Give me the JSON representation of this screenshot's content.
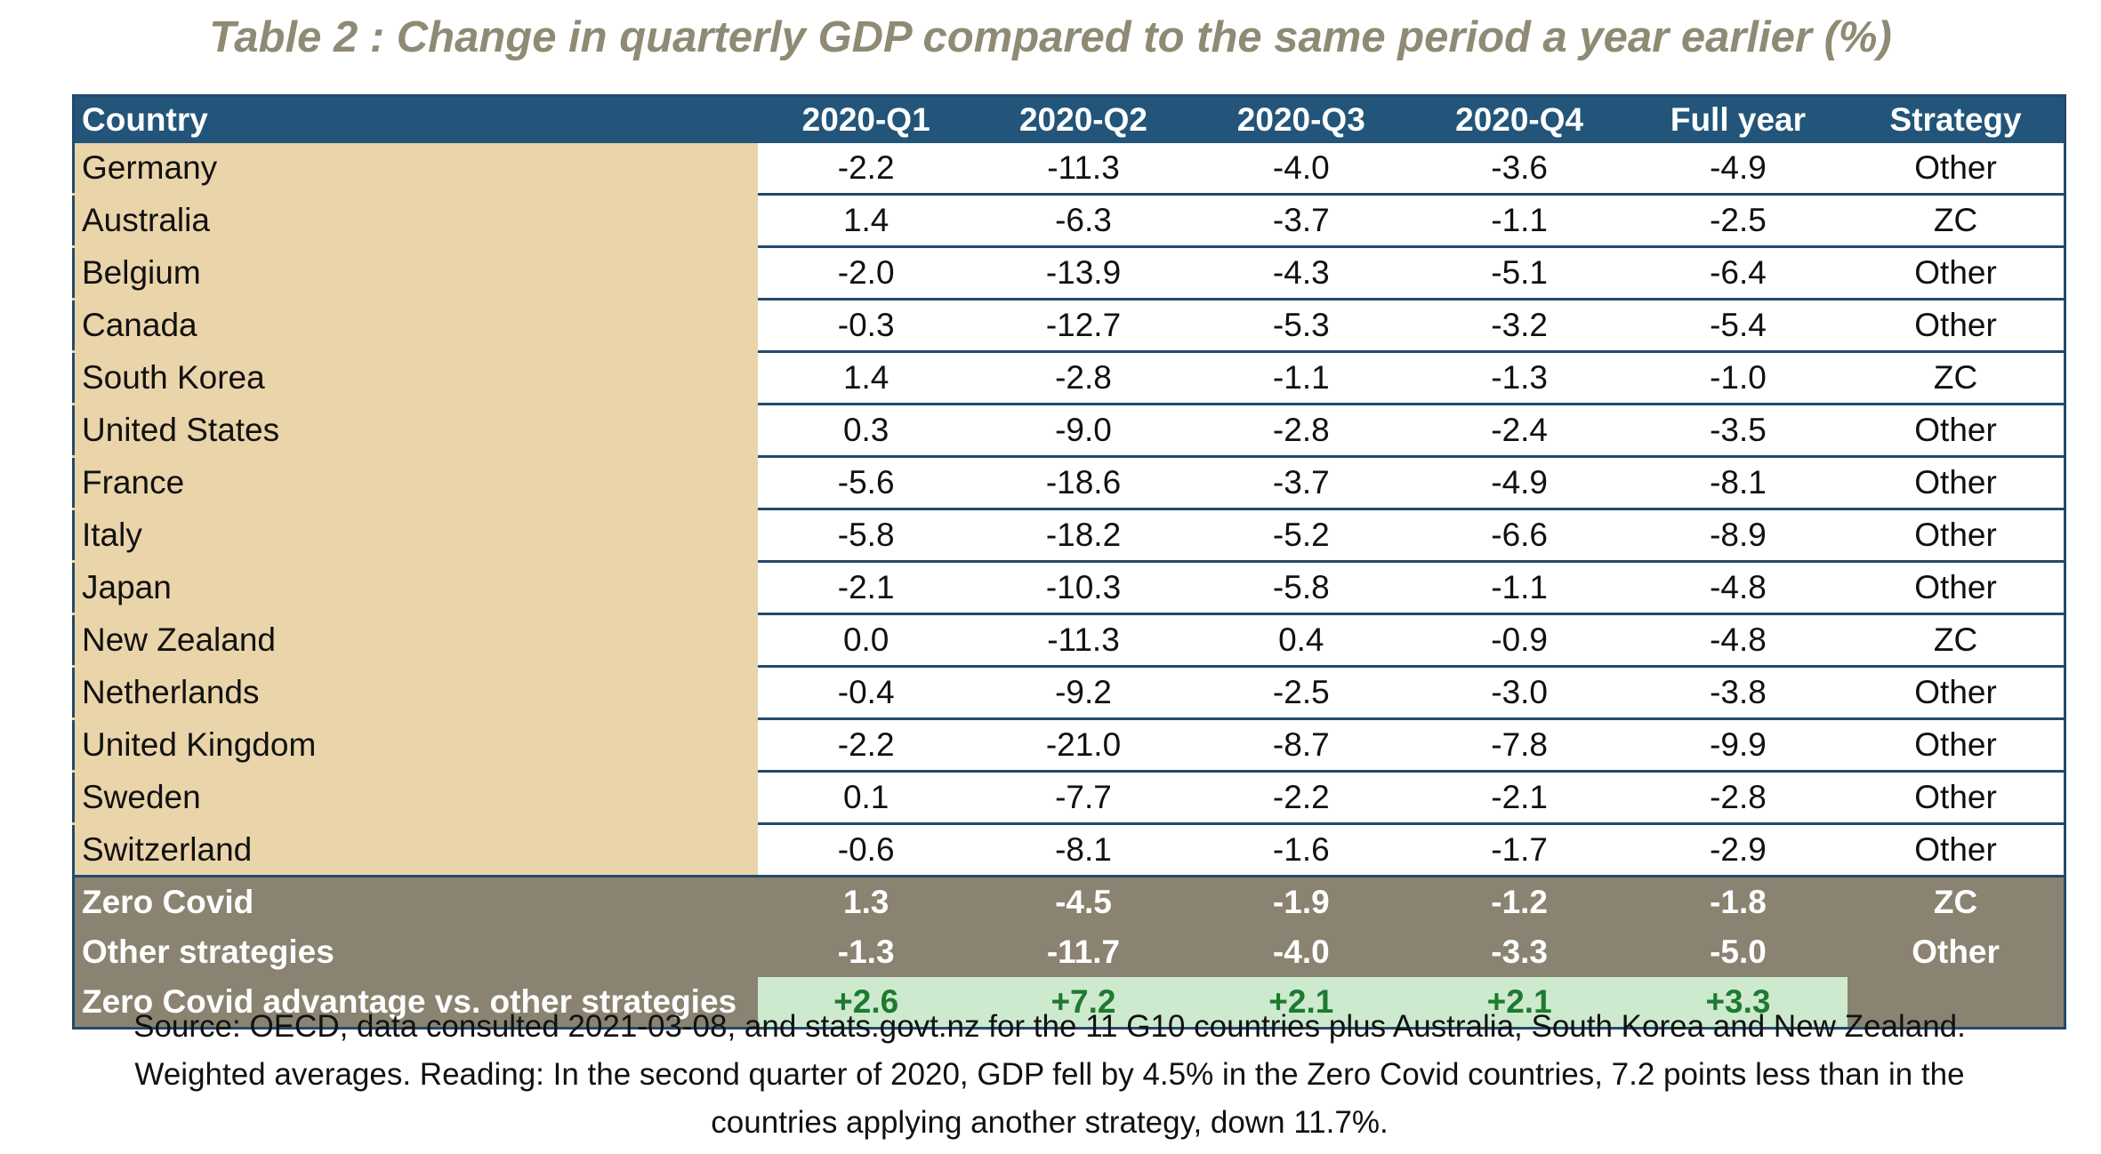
{
  "title": "Table 2 : Change in quarterly GDP compared to the same period a year earlier (%)",
  "chart_data": {
    "type": "table",
    "columns": [
      "Country",
      "2020-Q1",
      "2020-Q2",
      "2020-Q3",
      "2020-Q4",
      "Full year",
      "Strategy"
    ],
    "rows": [
      [
        "Germany",
        "-2.2",
        "-11.3",
        "-4.0",
        "-3.6",
        "-4.9",
        "Other"
      ],
      [
        "Australia",
        "1.4",
        "-6.3",
        "-3.7",
        "-1.1",
        "-2.5",
        "ZC"
      ],
      [
        "Belgium",
        "-2.0",
        "-13.9",
        "-4.3",
        "-5.1",
        "-6.4",
        "Other"
      ],
      [
        "Canada",
        "-0.3",
        "-12.7",
        "-5.3",
        "-3.2",
        "-5.4",
        "Other"
      ],
      [
        "South Korea",
        "1.4",
        "-2.8",
        "-1.1",
        "-1.3",
        "-1.0",
        "ZC"
      ],
      [
        "United States",
        "0.3",
        "-9.0",
        "-2.8",
        "-2.4",
        "-3.5",
        "Other"
      ],
      [
        "France",
        "-5.6",
        "-18.6",
        "-3.7",
        "-4.9",
        "-8.1",
        "Other"
      ],
      [
        "Italy",
        "-5.8",
        "-18.2",
        "-5.2",
        "-6.6",
        "-8.9",
        "Other"
      ],
      [
        "Japan",
        "-2.1",
        "-10.3",
        "-5.8",
        "-1.1",
        "-4.8",
        "Other"
      ],
      [
        "New Zealand",
        "0.0",
        "-11.3",
        "0.4",
        "-0.9",
        "-4.8",
        "ZC"
      ],
      [
        "Netherlands",
        "-0.4",
        "-9.2",
        "-2.5",
        "-3.0",
        "-3.8",
        "Other"
      ],
      [
        "United Kingdom",
        "-2.2",
        "-21.0",
        "-8.7",
        "-7.8",
        "-9.9",
        "Other"
      ],
      [
        "Sweden",
        "0.1",
        "-7.7",
        "-2.2",
        "-2.1",
        "-2.8",
        "Other"
      ],
      [
        "Switzerland",
        "-0.6",
        "-8.1",
        "-1.6",
        "-1.7",
        "-2.9",
        "Other"
      ]
    ],
    "summary_rows": [
      [
        "Zero Covid",
        "1.3",
        "-4.5",
        "-1.9",
        "-1.2",
        "-1.8",
        "ZC"
      ],
      [
        "Other strategies",
        "-1.3",
        "-11.7",
        "-4.0",
        "-3.3",
        "-5.0",
        "Other"
      ],
      [
        "Zero Covid advantage vs. other strategies",
        "+2.6",
        "+7.2",
        "+2.1",
        "+2.1",
        "+3.3",
        ""
      ]
    ]
  },
  "source_note": {
    "lines": [
      "Source: OECD, data consulted 2021-03-08, and stats.govt.nz for the 11 G10 countries plus Australia, South Korea and New Zealand.",
      "Weighted averages. Reading: In the second quarter of 2020, GDP fell by 4.5% in the Zero Covid countries, 7.2 points less than in the",
      "countries applying another strategy, down 11.7%."
    ]
  },
  "colors": {
    "title": "#8f8a74",
    "header_bg": "#225579",
    "country_bg": "#ead4a9",
    "summary_bg": "#8a8371",
    "advantage_bg": "#cdeacf",
    "advantage_text": "#1e7a2e"
  }
}
